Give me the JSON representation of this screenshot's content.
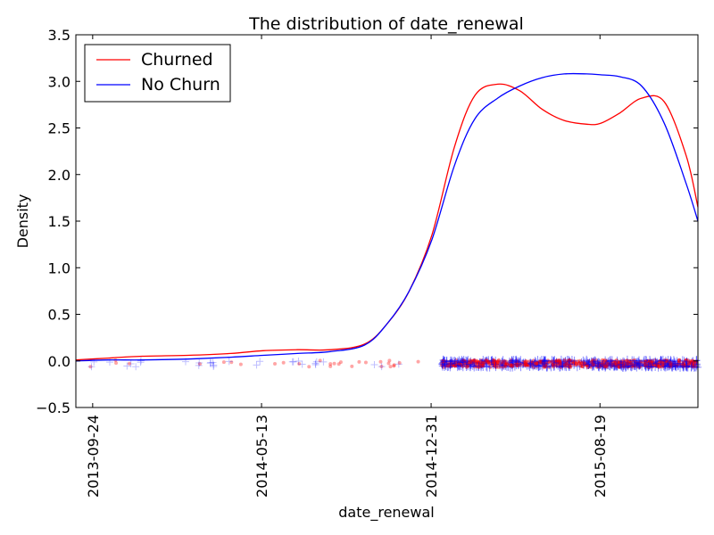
{
  "chart_data": {
    "type": "line",
    "title": "The distribution of date_renewal",
    "xlabel": "date_renewal",
    "ylabel": "Density",
    "x_axis_type": "date",
    "xlim": [
      "2013-09-01",
      "2015-12-31"
    ],
    "ylim": [
      -0.5,
      3.5
    ],
    "x_ticks": [
      "2013-09-24",
      "2014-05-13",
      "2014-12-31",
      "2015-08-19"
    ],
    "y_ticks": [
      -0.5,
      0.0,
      0.5,
      1.0,
      1.5,
      2.0,
      2.5,
      3.0,
      3.5
    ],
    "y_tick_labels": [
      "−0.5",
      "0.0",
      "0.5",
      "1.0",
      "1.5",
      "2.0",
      "2.5",
      "3.0",
      "3.5"
    ],
    "grid": false,
    "legend_position": "top-left",
    "series": [
      {
        "name": "Churned",
        "color": "#ff0000",
        "x": [
          "2013-09-01",
          "2013-10-15",
          "2013-12-01",
          "2014-02-01",
          "2014-04-01",
          "2014-05-15",
          "2014-07-01",
          "2014-08-15",
          "2014-10-01",
          "2014-11-01",
          "2014-12-01",
          "2015-01-01",
          "2015-02-01",
          "2015-03-01",
          "2015-04-01",
          "2015-05-01",
          "2015-06-01",
          "2015-07-01",
          "2015-08-01",
          "2015-08-20",
          "2015-09-15",
          "2015-10-15",
          "2015-11-15",
          "2015-12-15",
          "2015-12-31"
        ],
        "values": [
          0.01,
          0.03,
          0.05,
          0.06,
          0.08,
          0.11,
          0.12,
          0.12,
          0.18,
          0.4,
          0.75,
          1.35,
          2.3,
          2.85,
          2.97,
          2.9,
          2.7,
          2.58,
          2.54,
          2.55,
          2.66,
          2.82,
          2.78,
          2.2,
          1.65
        ]
      },
      {
        "name": "No Churn",
        "color": "#0000ff",
        "x": [
          "2013-09-01",
          "2013-10-15",
          "2013-12-01",
          "2014-02-01",
          "2014-04-01",
          "2014-05-15",
          "2014-07-01",
          "2014-08-15",
          "2014-10-01",
          "2014-11-01",
          "2014-12-01",
          "2015-01-01",
          "2015-02-01",
          "2015-03-01",
          "2015-04-01",
          "2015-05-01",
          "2015-06-01",
          "2015-07-01",
          "2015-08-01",
          "2015-08-20",
          "2015-09-15",
          "2015-10-15",
          "2015-11-15",
          "2015-12-15",
          "2015-12-31"
        ],
        "values": [
          0.0,
          0.01,
          0.01,
          0.02,
          0.04,
          0.06,
          0.08,
          0.1,
          0.17,
          0.4,
          0.75,
          1.3,
          2.1,
          2.6,
          2.82,
          2.95,
          3.04,
          3.08,
          3.08,
          3.07,
          3.05,
          2.95,
          2.55,
          1.9,
          1.5
        ]
      }
    ],
    "rug": {
      "Churned": {
        "color": "#ff0000",
        "marker": "circle",
        "y": -0.03
      },
      "No Churn": {
        "color": "#0000ff",
        "marker": "plus",
        "y": -0.03
      }
    }
  }
}
